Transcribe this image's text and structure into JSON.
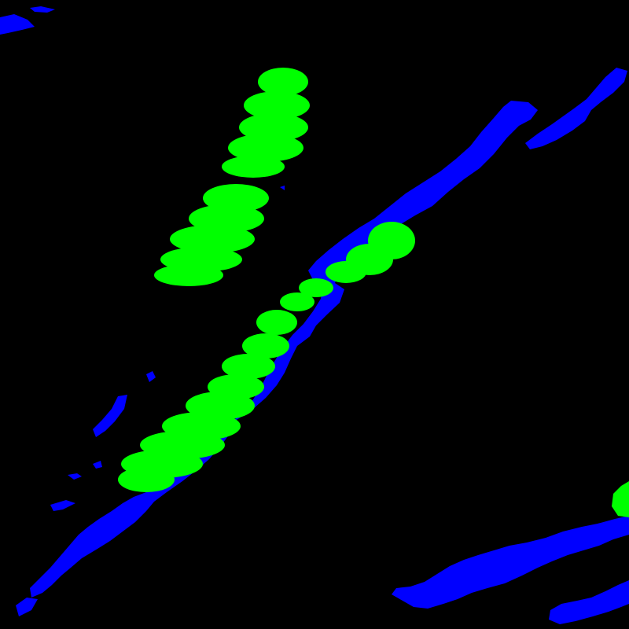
{
  "image": {
    "kind": "segmentation-mask",
    "background_color": "#000000",
    "classes": [
      {
        "name": "class-blue",
        "color": "#0000ff"
      },
      {
        "name": "class-green",
        "color": "#00ff00"
      }
    ]
  }
}
